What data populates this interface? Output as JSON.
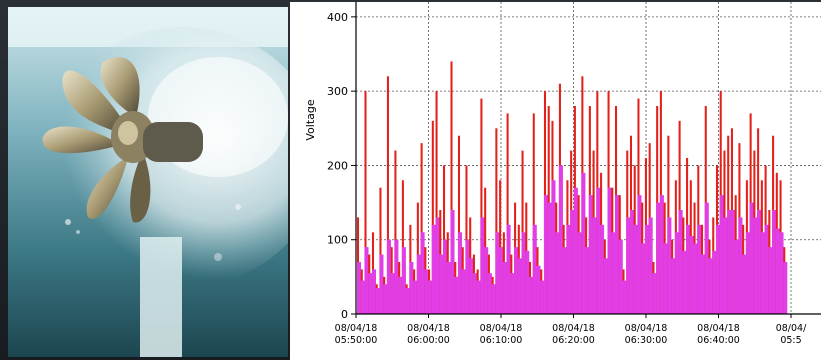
{
  "chart_data": {
    "type": "bar",
    "ylabel": "Voltage",
    "xlabel": "",
    "title": "",
    "ylim": [
      0,
      420
    ],
    "yticks": [
      0,
      100,
      200,
      300,
      400
    ],
    "xticks": [
      {
        "date": "08/04/18",
        "time": "05:50:00"
      },
      {
        "date": "08/04/18",
        "time": "06:00:00"
      },
      {
        "date": "08/04/18",
        "time": "06:10:00"
      },
      {
        "date": "08/04/18",
        "time": "06:20:00"
      },
      {
        "date": "08/04/18",
        "time": "06:30:00"
      },
      {
        "date": "08/04/18",
        "time": "06:40:00"
      },
      {
        "date": "08/04/",
        "time": "05:5"
      }
    ],
    "grid": true,
    "series": [
      {
        "color": "#e4201b",
        "role": "peak voltage",
        "values": [
          130,
          60,
          300,
          80,
          110,
          40,
          170,
          50,
          320,
          90,
          220,
          70,
          180,
          40,
          120,
          60,
          150,
          230,
          90,
          60,
          260,
          300,
          140,
          200,
          110,
          340,
          70,
          240,
          90,
          200,
          130,
          80,
          60,
          290,
          170,
          80,
          50,
          250,
          180,
          110,
          270,
          80,
          150,
          120,
          220,
          150,
          70,
          270,
          90,
          60,
          300,
          280,
          260,
          150,
          310,
          120,
          180,
          220,
          280,
          160,
          320,
          130,
          280,
          220,
          300,
          190,
          100,
          300,
          170,
          280,
          160,
          60,
          220,
          240,
          200,
          290,
          150,
          210,
          230,
          70,
          280,
          300,
          150,
          240,
          100,
          180,
          260,
          130,
          210,
          180,
          150,
          200,
          120,
          280,
          100,
          130,
          200,
          300,
          220,
          240,
          250,
          160,
          230,
          120,
          180,
          270,
          220,
          250,
          180,
          200,
          140,
          240,
          190,
          180,
          90
        ]
      },
      {
        "color": "#e23ee6",
        "role": "average voltage",
        "values": [
          70,
          45,
          90,
          55,
          60,
          35,
          80,
          40,
          100,
          55,
          100,
          50,
          90,
          35,
          70,
          45,
          80,
          110,
          60,
          45,
          120,
          130,
          80,
          100,
          70,
          140,
          50,
          110,
          60,
          100,
          75,
          55,
          45,
          130,
          90,
          55,
          40,
          110,
          90,
          70,
          120,
          55,
          90,
          75,
          110,
          85,
          50,
          120,
          65,
          45,
          160,
          150,
          180,
          110,
          200,
          90,
          120,
          140,
          170,
          110,
          190,
          90,
          160,
          130,
          170,
          120,
          75,
          170,
          110,
          160,
          100,
          45,
          130,
          140,
          120,
          160,
          95,
          120,
          130,
          55,
          150,
          160,
          95,
          130,
          75,
          110,
          140,
          85,
          120,
          105,
          95,
          120,
          80,
          150,
          75,
          85,
          120,
          160,
          130,
          140,
          140,
          100,
          130,
          80,
          110,
          150,
          130,
          140,
          110,
          120,
          90,
          140,
          115,
          110,
          70
        ]
      }
    ]
  },
  "photo": {
    "subject": "propeller-turbine underwater"
  }
}
